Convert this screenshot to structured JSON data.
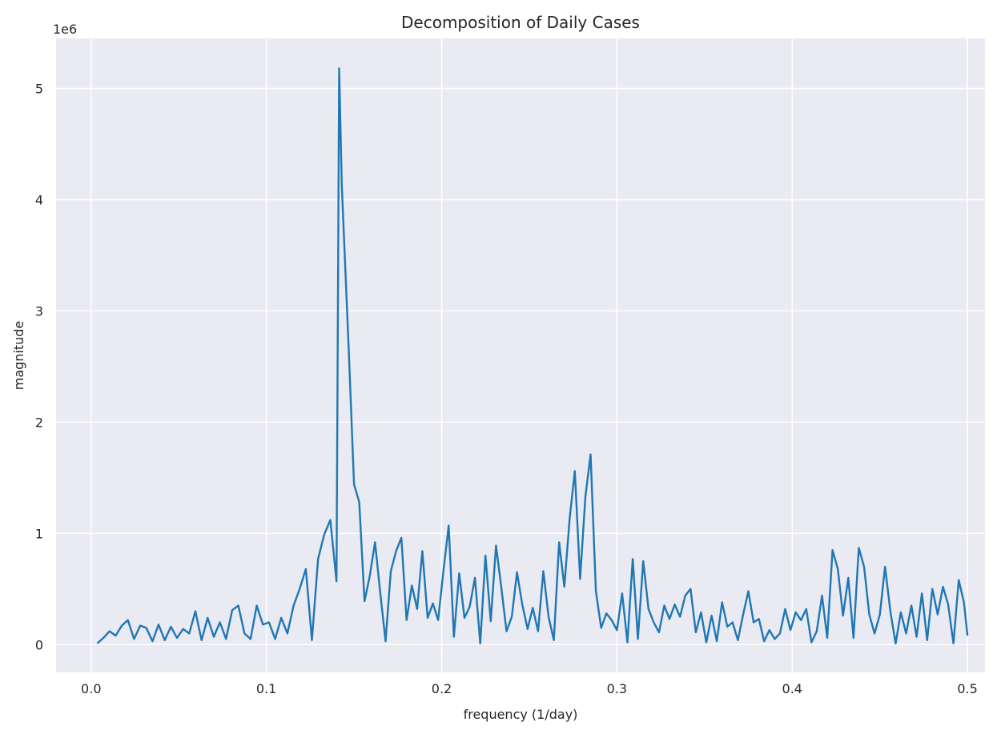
{
  "chart_data": {
    "type": "line",
    "title": "Decomposition of Daily Cases",
    "xlabel": "frequency (1/day)",
    "ylabel": "magnitude",
    "y_offset_label": "1e6",
    "xlim": [
      -0.02,
      0.51
    ],
    "ylim": [
      -0.25,
      5.45
    ],
    "xticks": [
      0.0,
      0.1,
      0.2,
      0.3,
      0.4,
      0.5
    ],
    "xtick_labels": [
      "0.0",
      "0.1",
      "0.2",
      "0.3",
      "0.4",
      "0.5"
    ],
    "yticks": [
      0,
      1,
      2,
      3,
      4,
      5
    ],
    "ytick_labels": [
      "0",
      "1",
      "2",
      "3",
      "4",
      "5"
    ],
    "grid": true,
    "background": "#eaeaf2",
    "grid_color": "#ffffff",
    "series_color": "#1f77b4",
    "series": [
      {
        "x": [
          0.0035,
          0.007,
          0.0105,
          0.014,
          0.0175,
          0.021,
          0.0245,
          0.028,
          0.0315,
          0.035,
          0.0385,
          0.042,
          0.0455,
          0.049,
          0.0525,
          0.056,
          0.0595,
          0.063,
          0.0665,
          0.07,
          0.0735,
          0.077,
          0.0805,
          0.084,
          0.0875,
          0.091,
          0.0945,
          0.098,
          0.1015,
          0.105,
          0.1085,
          0.112,
          0.1155,
          0.119,
          0.1225,
          0.126,
          0.1295,
          0.133,
          0.1365,
          0.14,
          0.1415,
          0.143,
          0.147,
          0.15,
          0.153,
          0.156,
          0.159,
          0.162,
          0.165,
          0.168,
          0.171,
          0.174,
          0.177,
          0.18,
          0.183,
          0.186,
          0.189,
          0.192,
          0.195,
          0.198,
          0.201,
          0.204,
          0.207,
          0.21,
          0.213,
          0.216,
          0.219,
          0.222,
          0.225,
          0.228,
          0.231,
          0.234,
          0.237,
          0.24,
          0.243,
          0.246,
          0.249,
          0.252,
          0.255,
          0.258,
          0.261,
          0.264,
          0.267,
          0.27,
          0.273,
          0.276,
          0.279,
          0.282,
          0.285,
          0.288,
          0.291,
          0.294,
          0.297,
          0.3,
          0.303,
          0.306,
          0.309,
          0.312,
          0.315,
          0.318,
          0.321,
          0.324,
          0.327,
          0.33,
          0.333,
          0.336,
          0.339,
          0.342,
          0.345,
          0.348,
          0.351,
          0.354,
          0.357,
          0.36,
          0.363,
          0.366,
          0.369,
          0.372,
          0.375,
          0.378,
          0.381,
          0.384,
          0.387,
          0.39,
          0.393,
          0.396,
          0.399,
          0.402,
          0.405,
          0.408,
          0.411,
          0.414,
          0.417,
          0.42,
          0.423,
          0.426,
          0.429,
          0.432,
          0.435,
          0.438,
          0.441,
          0.444,
          0.447,
          0.45,
          0.453,
          0.456,
          0.459,
          0.462,
          0.465,
          0.468,
          0.471,
          0.474,
          0.477,
          0.48,
          0.483,
          0.486,
          0.489,
          0.492,
          0.495,
          0.498,
          0.5
        ],
        "y": [
          0.01,
          0.06,
          0.12,
          0.08,
          0.17,
          0.22,
          0.05,
          0.17,
          0.15,
          0.03,
          0.18,
          0.04,
          0.16,
          0.06,
          0.14,
          0.1,
          0.3,
          0.04,
          0.24,
          0.07,
          0.2,
          0.05,
          0.31,
          0.35,
          0.1,
          0.05,
          0.35,
          0.18,
          0.2,
          0.05,
          0.24,
          0.1,
          0.35,
          0.5,
          0.68,
          0.04,
          0.77,
          0.99,
          1.12,
          0.57,
          5.18,
          4.13,
          2.65,
          1.44,
          1.28,
          0.39,
          0.62,
          0.92,
          0.46,
          0.03,
          0.66,
          0.84,
          0.96,
          0.22,
          0.53,
          0.32,
          0.84,
          0.24,
          0.37,
          0.22,
          0.66,
          1.07,
          0.07,
          0.64,
          0.24,
          0.34,
          0.6,
          0.01,
          0.8,
          0.21,
          0.89,
          0.52,
          0.12,
          0.25,
          0.65,
          0.36,
          0.14,
          0.33,
          0.12,
          0.66,
          0.25,
          0.04,
          0.92,
          0.52,
          1.13,
          1.56,
          0.59,
          1.33,
          1.71,
          0.48,
          0.15,
          0.28,
          0.22,
          0.13,
          0.46,
          0.02,
          0.77,
          0.05,
          0.75,
          0.32,
          0.2,
          0.11,
          0.35,
          0.23,
          0.36,
          0.25,
          0.44,
          0.5,
          0.11,
          0.29,
          0.02,
          0.26,
          0.03,
          0.38,
          0.16,
          0.2,
          0.04,
          0.27,
          0.48,
          0.2,
          0.23,
          0.03,
          0.13,
          0.05,
          0.1,
          0.32,
          0.13,
          0.29,
          0.22,
          0.32,
          0.02,
          0.12,
          0.44,
          0.06,
          0.85,
          0.68,
          0.26,
          0.6,
          0.06,
          0.87,
          0.7,
          0.27,
          0.1,
          0.27,
          0.7,
          0.3,
          0.01,
          0.29,
          0.1,
          0.35,
          0.07,
          0.46,
          0.04,
          0.5,
          0.27,
          0.52,
          0.36,
          0.01,
          0.58,
          0.38,
          0.08
        ]
      }
    ]
  }
}
